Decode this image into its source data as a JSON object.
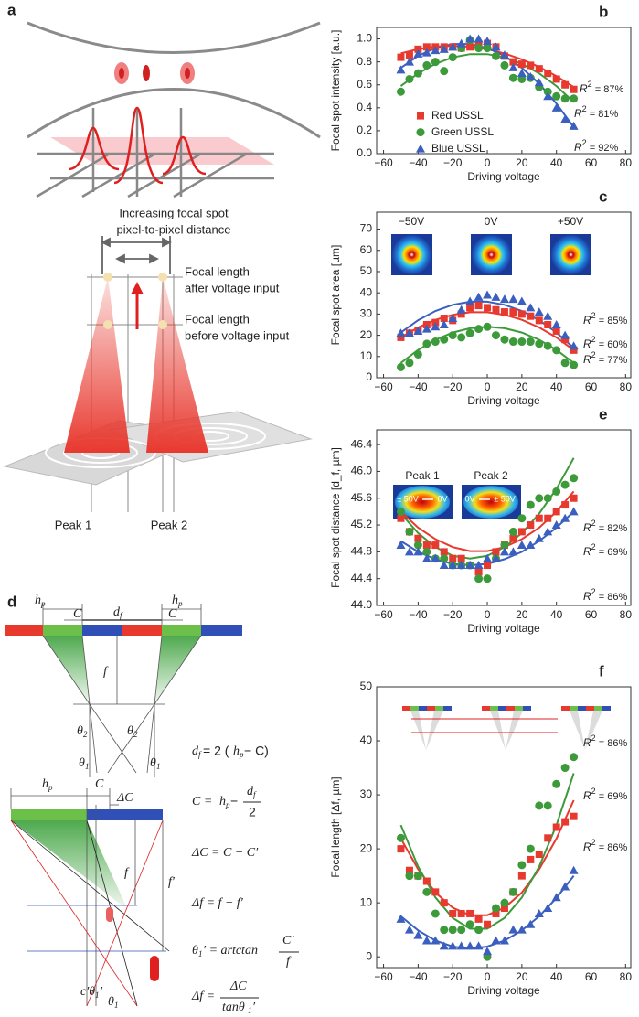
{
  "chart_data": [
    {
      "type": "scatter",
      "panel": "b",
      "ylabel": "Focal spot intensity [a.u.]",
      "xlabel": "Driving voltage",
      "xlim": [
        -64,
        83
      ],
      "xticks": [
        {
          "value": -60,
          "label": "−60"
        },
        {
          "value": -40,
          "label": "−40"
        },
        {
          "value": -20,
          "label": "−20"
        },
        0,
        20,
        40,
        60,
        80
      ],
      "ylim": [
        0,
        1.1
      ],
      "yticks": [
        {
          "value": 0,
          "label": "0.0"
        },
        0.2,
        0.4,
        0.6,
        0.8,
        {
          "value": 1,
          "label": "1.0"
        }
      ],
      "legend": "center-left",
      "x": [
        -50,
        -45,
        -40,
        -35,
        -30,
        -25,
        -20,
        -15,
        -10,
        -5,
        0,
        5,
        10,
        15,
        20,
        25,
        30,
        35,
        40,
        45,
        50
      ],
      "fit_x": [
        -50,
        -40,
        -30,
        -20,
        -10,
        0,
        10,
        20,
        30,
        40,
        50
      ],
      "series": [
        {
          "name": "Red USSL",
          "color": "#e8392f",
          "marker": "square",
          "values": [
            0.84,
            0.86,
            0.91,
            0.93,
            0.93,
            0.93,
            0.93,
            0.92,
            0.93,
            0.94,
            0.96,
            0.93,
            0.85,
            0.8,
            0.78,
            0.77,
            0.74,
            0.7,
            0.65,
            0.6,
            0.56
          ],
          "fit": [
            0.874,
            0.911,
            0.933,
            0.94,
            0.933,
            0.911,
            0.874,
            0.822,
            0.756,
            0.675,
            0.58
          ]
        },
        {
          "name": "Green USSL",
          "color": "#3d9a3b",
          "marker": "circle",
          "values": [
            0.54,
            0.65,
            0.7,
            0.77,
            0.8,
            0.72,
            0.84,
            0.92,
            0.99,
            0.92,
            0.92,
            0.85,
            0.77,
            0.66,
            0.65,
            0.66,
            0.58,
            0.54,
            0.5,
            0.48,
            0.48
          ],
          "fit": [
            0.589,
            0.7,
            0.783,
            0.839,
            0.867,
            0.867,
            0.839,
            0.783,
            0.7,
            0.589,
            0.45
          ]
        },
        {
          "name": "Blue USSL",
          "color": "#3b5fbf",
          "marker": "triangle",
          "values": [
            0.73,
            0.8,
            0.87,
            0.88,
            0.9,
            0.91,
            0.93,
            0.96,
            1,
            1,
            0.98,
            0.93,
            0.86,
            0.75,
            0.7,
            0.67,
            0.62,
            0.5,
            0.4,
            0.3,
            0.24
          ],
          "fit": [
            0.748,
            0.852,
            0.921,
            0.956,
            0.956,
            0.921,
            0.852,
            0.748,
            0.61,
            0.437,
            0.23
          ]
        }
      ],
      "annotations": [
        {
          "text": "R",
          "sup": "2",
          "value": " = 87%"
        },
        {
          "text": "R",
          "sup": "2",
          "value": " = 81%"
        },
        {
          "text": "R",
          "sup": "2",
          "value": " = 92%"
        }
      ]
    },
    {
      "type": "scatter",
      "panel": "c",
      "ylabel": "Focal spot area [µm]",
      "xlabel": "Driving voltage",
      "xlim": [
        -64,
        83
      ],
      "xticks": [
        {
          "value": -60,
          "label": "−60"
        },
        {
          "value": -40,
          "label": "−40"
        },
        {
          "value": -20,
          "label": "−20"
        },
        0,
        20,
        40,
        60,
        80
      ],
      "ylim": [
        0,
        78
      ],
      "yticks": [
        0,
        10,
        20,
        30,
        40,
        50,
        60,
        70
      ],
      "x": [
        -50,
        -45,
        -40,
        -35,
        -30,
        -25,
        -20,
        -15,
        -10,
        -5,
        0,
        5,
        10,
        15,
        20,
        25,
        30,
        35,
        40,
        45,
        50
      ],
      "fit_x": [
        -50,
        -40,
        -30,
        -20,
        -10,
        0,
        10,
        20,
        30,
        40,
        50
      ],
      "inset_labels": [
        "−50V",
        "0V",
        "+50V"
      ],
      "series": [
        {
          "color": "#e8392f",
          "marker": "square",
          "values": [
            19,
            21,
            22,
            25,
            26,
            28,
            27,
            30,
            33,
            34,
            33,
            32,
            31,
            31,
            30,
            29,
            27,
            25,
            22,
            18,
            13
          ],
          "fit": [
            18.95,
            23.71,
            27.28,
            29.66,
            30.85,
            30.85,
            29.66,
            27.28,
            23.71,
            18.95,
            13
          ]
        },
        {
          "color": "#3d9a3b",
          "marker": "circle",
          "values": [
            5,
            7,
            11,
            16,
            17,
            18,
            20,
            19,
            21,
            23,
            24,
            20,
            18,
            17,
            17,
            17,
            16,
            15,
            13,
            7,
            6
          ],
          "fit": [
            7,
            13.1,
            17.9,
            21.3,
            23.3,
            24,
            23.3,
            21.3,
            17.9,
            13.1,
            7
          ]
        },
        {
          "color": "#3b5fbf",
          "marker": "triangle",
          "values": [
            21,
            21,
            22,
            23,
            24,
            25,
            28,
            32,
            36,
            38,
            39,
            38,
            37,
            37,
            36,
            33,
            31,
            29,
            25,
            20,
            15
          ],
          "fit": [
            21.27,
            27.09,
            31.46,
            34.36,
            35.82,
            35.82,
            34.36,
            31.46,
            27.09,
            21.27,
            14
          ]
        }
      ],
      "annotations": [
        {
          "text": "R",
          "sup": "2",
          "value": " = 85%"
        },
        {
          "text": "R",
          "sup": "2",
          "value": " = 60%"
        },
        {
          "text": "R",
          "sup": "2",
          "value": " = 77%"
        }
      ]
    },
    {
      "type": "scatter",
      "panel": "e",
      "ylabel": "Focal spot distance [d_f, µm]",
      "xlabel": "Driving voltage",
      "xlim": [
        -64,
        83
      ],
      "xticks": [
        {
          "value": -60,
          "label": "−60"
        },
        {
          "value": -40,
          "label": "−40"
        },
        {
          "value": -20,
          "label": "−20"
        },
        0,
        20,
        40,
        60,
        80
      ],
      "ylim": [
        44,
        46.62
      ],
      "yticks": [
        {
          "value": 44,
          "label": "44.0"
        },
        44.4,
        44.8,
        45.2,
        45.6,
        {
          "value": 46,
          "label": "46.0"
        },
        46.4
      ],
      "x": [
        -50,
        -45,
        -40,
        -35,
        -30,
        -25,
        -20,
        -15,
        -10,
        -5,
        0,
        5,
        10,
        15,
        20,
        25,
        30,
        35,
        40,
        45,
        50
      ],
      "fit_x": [
        -50,
        -40,
        -30,
        -20,
        -10,
        0,
        10,
        20,
        30,
        40,
        50
      ],
      "inset_labels": [
        "Peak 1",
        "Peak 2",
        "± 50V",
        "0V",
        "0V",
        "± 50V"
      ],
      "series": [
        {
          "color": "#e8392f",
          "marker": "square",
          "values": [
            45.3,
            45.1,
            45,
            44.9,
            44.9,
            44.8,
            44.7,
            44.7,
            44.6,
            44.5,
            44.6,
            44.8,
            44.9,
            45,
            45.1,
            45.2,
            45.3,
            45.3,
            45.4,
            45.5,
            45.6
          ],
          "fit": [
            45.4,
            45.16,
            44.99,
            44.87,
            44.81,
            44.81,
            44.87,
            44.99,
            45.16,
            45.4,
            45.7
          ]
        },
        {
          "color": "#3d9a3b",
          "marker": "circle",
          "values": [
            45.4,
            45.1,
            44.9,
            44.8,
            44.7,
            44.7,
            44.6,
            44.6,
            44.6,
            44.4,
            44.4,
            44.7,
            44.9,
            45.1,
            45.3,
            45.5,
            45.6,
            45.6,
            45.7,
            45.8,
            45.9
          ],
          "fit": [
            45.37,
            45.08,
            44.87,
            44.74,
            44.7,
            44.74,
            44.87,
            45.08,
            45.37,
            45.74,
            46.2
          ]
        },
        {
          "color": "#3b5fbf",
          "marker": "triangle",
          "values": [
            44.9,
            44.8,
            44.8,
            44.7,
            44.7,
            44.6,
            44.6,
            44.6,
            44.6,
            44.6,
            44.7,
            44.7,
            44.8,
            44.8,
            44.9,
            44.9,
            45,
            45.1,
            45.2,
            45.3,
            45.4
          ],
          "fit": [
            44.96,
            44.8,
            44.69,
            44.62,
            44.6,
            44.62,
            44.69,
            44.8,
            44.96,
            45.16,
            45.4
          ]
        }
      ],
      "annotations": [
        {
          "text": "R",
          "sup": "2",
          "value": " = 82%"
        },
        {
          "text": "R",
          "sup": "2",
          "value": " = 69%"
        },
        {
          "text": "R",
          "sup": "2",
          "value": " = 86%"
        }
      ]
    },
    {
      "type": "scatter",
      "panel": "f",
      "ylabel": "Focal length [Δf, µm]",
      "xlabel": "Driving voltage",
      "xlim": [
        -64,
        83
      ],
      "xticks": [
        {
          "value": -60,
          "label": "−60"
        },
        {
          "value": -40,
          "label": "−40"
        },
        {
          "value": -20,
          "label": "−20"
        },
        0,
        20,
        40,
        60,
        80
      ],
      "ylim": [
        -2,
        50
      ],
      "yticks": [
        0,
        10,
        20,
        30,
        40,
        50
      ],
      "x": [
        -50,
        -45,
        -40,
        -35,
        -30,
        -25,
        -20,
        -15,
        -10,
        -5,
        0,
        5,
        10,
        15,
        20,
        25,
        30,
        35,
        40,
        45,
        50
      ],
      "fit_x": [
        -50,
        -40,
        -30,
        -20,
        -10,
        0,
        10,
        20,
        30,
        40,
        50
      ],
      "series": [
        {
          "color": "#e8392f",
          "marker": "square",
          "values": [
            20,
            16,
            15,
            14,
            12,
            10,
            8,
            8,
            8,
            7,
            6,
            8,
            9,
            12,
            15,
            18,
            19,
            22,
            24,
            25,
            26
          ],
          "fit": [
            21.9,
            16.2,
            11.9,
            9.1,
            7.7,
            7.7,
            9.1,
            11.9,
            16.2,
            21.9,
            29
          ]
        },
        {
          "color": "#3d9a3b",
          "marker": "circle",
          "values": [
            22,
            15,
            15,
            12,
            8,
            5,
            5,
            5,
            6,
            5,
            0,
            9,
            10,
            12,
            17,
            20,
            28,
            28,
            32,
            35,
            37
          ],
          "fit": [
            24.4,
            16.7,
            11,
            7.2,
            5.2,
            5.2,
            7.2,
            11,
            16.7,
            24.4,
            34
          ]
        },
        {
          "color": "#3b5fbf",
          "marker": "triangle",
          "values": [
            7,
            5,
            4,
            3,
            3,
            2,
            2,
            2,
            2,
            2,
            1,
            3,
            3,
            5,
            5,
            6,
            8,
            9,
            11,
            13,
            16
          ],
          "fit": [
            7.5,
            4.9,
            3,
            1.9,
            1.5,
            1.9,
            3,
            4.9,
            7.5,
            10.9,
            15
          ]
        }
      ],
      "annotations": [
        {
          "text": "R",
          "sup": "2",
          "value": " = 86%"
        },
        {
          "text": "R",
          "sup": "2",
          "value": " = 69%"
        },
        {
          "text": "R",
          "sup": "2",
          "value": " = 86%"
        }
      ]
    }
  ],
  "diagram_a": {
    "panel": "a",
    "labels": [
      "Increasing focal spot",
      "pixel-to-pixel distance",
      "Focal length",
      "after voltage input",
      "Focal length",
      "before voltage input",
      "Peak 1",
      "Peak 2"
    ]
  },
  "diagram_d": {
    "panel": "d",
    "labels": [
      "h",
      "p",
      "h",
      "p",
      "C",
      "d",
      "f",
      "C",
      "f",
      "θ",
      "2",
      "θ",
      "2",
      "θ",
      "1",
      "θ",
      "1",
      "d",
      "f",
      " = 2 (",
      "h",
      "p",
      " − C)",
      "C = ",
      "h",
      "p",
      " − ",
      "d",
      "f",
      "2",
      "ΔC = C − C′",
      "Δf = f − f′",
      "θ",
      "1",
      "′ = artctan",
      "C′",
      "f",
      "Δf = ",
      "ΔC",
      "tanθ",
      "1",
      "′",
      "h",
      "p",
      "C",
      "ΔC",
      "f",
      "f′",
      "c′θ",
      "1",
      "′",
      "θ",
      "1"
    ]
  }
}
